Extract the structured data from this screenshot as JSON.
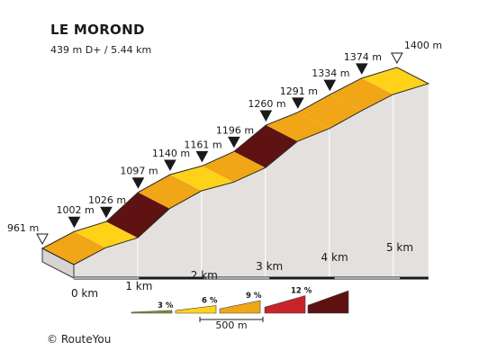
{
  "header": {
    "title": "LE MOROND",
    "subtitle": "439 m D+ / 5.44 km"
  },
  "footer": {
    "copyright": "©  RouteYou"
  },
  "colors": {
    "grade_0_3": "#7a9a2a",
    "grade_3_6": "#ffd21a",
    "grade_6_9": "#f0a616",
    "grade_9_12": "#c8232b",
    "grade_12_plus": "#5e1212",
    "wall": "#e4e0de",
    "base": "#d8d4d2"
  },
  "chart_data": {
    "type": "area",
    "title": "LE MOROND",
    "xlabel": "",
    "ylabel": "",
    "x_unit": "km",
    "y_unit": "m",
    "xlim": [
      0,
      5.44
    ],
    "points": [
      {
        "km": 0.0,
        "alt": 961
      },
      {
        "km": 0.49,
        "alt": 1002
      },
      {
        "km": 0.98,
        "alt": 1026
      },
      {
        "km": 1.47,
        "alt": 1097
      },
      {
        "km": 1.96,
        "alt": 1140
      },
      {
        "km": 2.45,
        "alt": 1161
      },
      {
        "km": 2.94,
        "alt": 1196
      },
      {
        "km": 3.43,
        "alt": 1260
      },
      {
        "km": 3.92,
        "alt": 1291
      },
      {
        "km": 4.41,
        "alt": 1334
      },
      {
        "km": 4.9,
        "alt": 1374
      },
      {
        "km": 5.44,
        "alt": 1400
      }
    ],
    "point_labels": [
      "961 m",
      "1002 m",
      "1026 m",
      "1097 m",
      "1140 m",
      "1161 m",
      "1196 m",
      "1260 m",
      "1291 m",
      "1334 m",
      "1374 m",
      "1400 m"
    ],
    "segment_grade_class": [
      "grade_6_9",
      "grade_3_6",
      "grade_12_plus",
      "grade_6_9",
      "grade_3_6",
      "grade_6_9",
      "grade_12_plus",
      "grade_6_9",
      "grade_6_9",
      "grade_6_9",
      "grade_3_6"
    ],
    "x_ticks": [
      0,
      1,
      2,
      3,
      4,
      5
    ],
    "x_tick_labels": [
      "0 km",
      "1 km",
      "2 km",
      "3 km",
      "4 km",
      "5 km"
    ],
    "legend": {
      "items": [
        {
          "label": "3 %",
          "color_key": "grade_0_3"
        },
        {
          "label": "6 %",
          "color_key": "grade_3_6"
        },
        {
          "label": "9 %",
          "color_key": "grade_6_9"
        },
        {
          "label": "12 %",
          "color_key": "grade_9_12"
        },
        {
          "label": "",
          "color_key": "grade_12_plus"
        }
      ],
      "scale_label": "500 m"
    }
  }
}
